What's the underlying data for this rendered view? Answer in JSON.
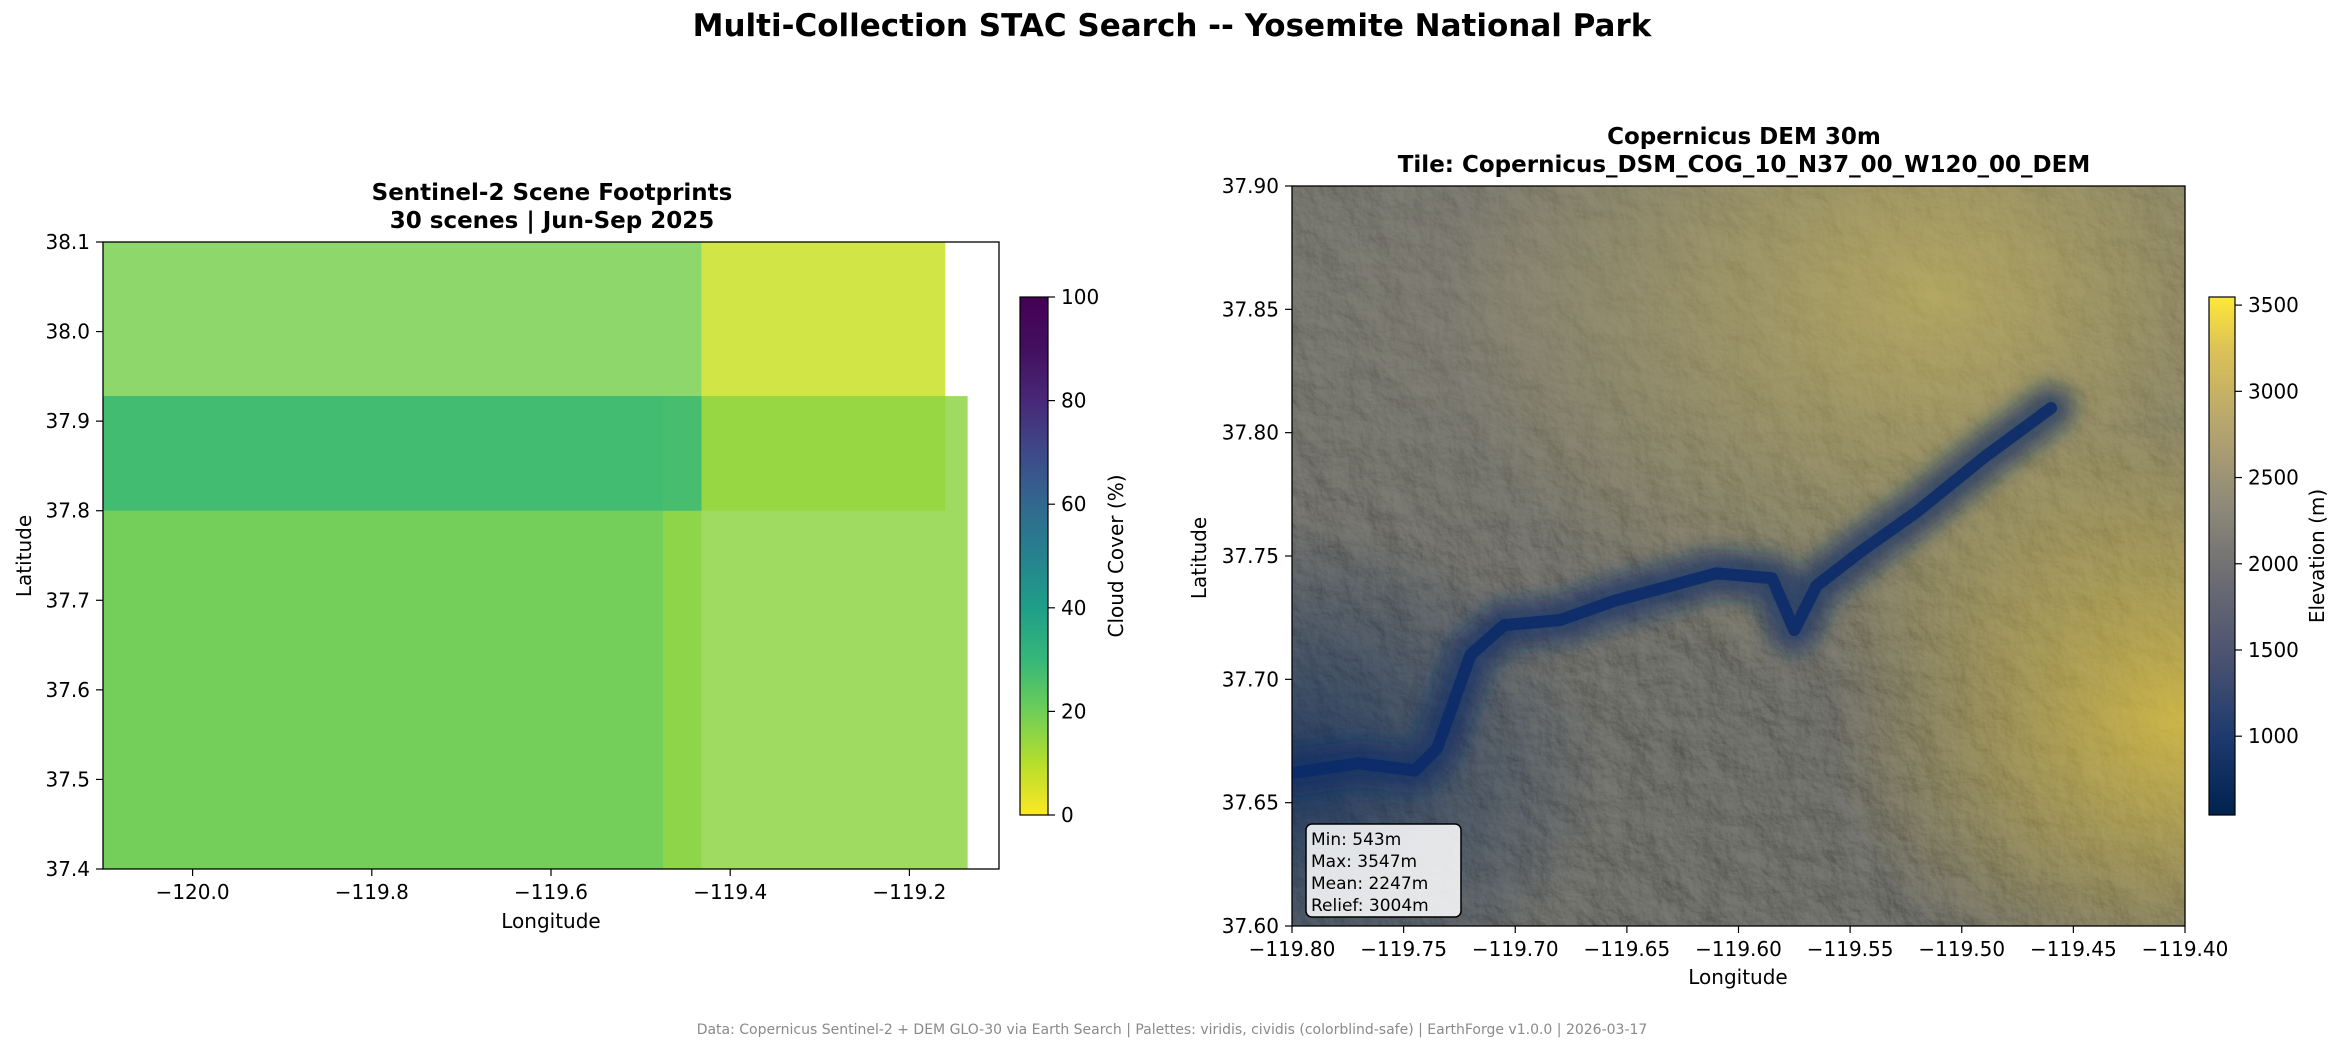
{
  "figure": {
    "title": "Multi-Collection STAC Search -- Yosemite National Park",
    "footer": "Data: Copernicus Sentinel-2 + DEM GLO-30 via Earth Search | Palettes: viridis, cividis (colorblind-safe) | EarthForge v1.0.0 | 2026-03-17"
  },
  "chart_data": [
    {
      "type": "heatmap",
      "title_line1": "Sentinel-2 Scene Footprints",
      "title_line2": "30 scenes | Jun-Sep 2025",
      "xlabel": "Longitude",
      "ylabel": "Latitude",
      "xlim": [
        -120.1,
        -119.1
      ],
      "ylim": [
        37.4,
        38.1
      ],
      "xticks": [
        -120.0,
        -119.8,
        -119.6,
        -119.4,
        -119.2
      ],
      "xtick_labels": [
        "−120.0",
        "−119.8",
        "−119.6",
        "−119.4",
        "−119.2"
      ],
      "yticks": [
        37.4,
        37.5,
        37.6,
        37.7,
        37.8,
        37.9,
        38.0,
        38.1
      ],
      "ytick_labels": [
        "37.4",
        "37.5",
        "37.6",
        "37.7",
        "37.8",
        "37.9",
        "38.0",
        "38.1"
      ],
      "colorbar": {
        "label": "Cloud Cover (%)",
        "colormap": "viridis_r",
        "range": [
          0,
          100
        ],
        "ticks": [
          0,
          20,
          40,
          60,
          80,
          100
        ],
        "tick_labels": [
          "0",
          "20",
          "40",
          "60",
          "80",
          "100"
        ]
      },
      "footprints": [
        {
          "lon_min": -120.1,
          "lon_max": -119.432,
          "lat_min": 37.4,
          "lat_max": 38.1,
          "cloud_cover": 20
        },
        {
          "lon_min": -119.432,
          "lon_max": -119.16,
          "lat_min": 37.8,
          "lat_max": 38.1,
          "cloud_cover": 8
        },
        {
          "lon_min": -120.1,
          "lon_max": -119.475,
          "lat_min": 37.4,
          "lat_max": 37.928,
          "cloud_cover": 22
        },
        {
          "lon_min": -119.475,
          "lon_max": -119.135,
          "lat_min": 37.4,
          "lat_max": 37.928,
          "cloud_cover": 17
        },
        {
          "lon_min": -120.1,
          "lon_max": -119.432,
          "lat_min": 37.8,
          "lat_max": 37.928,
          "cloud_cover": 33
        }
      ]
    },
    {
      "type": "heatmap",
      "title_line1": "Copernicus DEM 30m",
      "title_line2": "Tile: Copernicus_DSM_COG_10_N37_00_W120_00_DEM",
      "xlabel": "Longitude",
      "ylabel": "Latitude",
      "xlim": [
        -119.8,
        -119.4
      ],
      "ylim": [
        37.6,
        37.9
      ],
      "xticks": [
        -119.8,
        -119.75,
        -119.7,
        -119.65,
        -119.6,
        -119.55,
        -119.5,
        -119.45,
        -119.4
      ],
      "xtick_labels": [
        "−119.80",
        "−119.75",
        "−119.70",
        "−119.65",
        "−119.60",
        "−119.55",
        "−119.50",
        "−119.45",
        "−119.40"
      ],
      "yticks": [
        37.6,
        37.65,
        37.7,
        37.75,
        37.8,
        37.85,
        37.9
      ],
      "ytick_labels": [
        "37.60",
        "37.65",
        "37.70",
        "37.75",
        "37.80",
        "37.85",
        "37.90"
      ],
      "colorbar": {
        "label": "Elevation (m)",
        "colormap": "cividis",
        "range": [
          543,
          3547
        ],
        "ticks": [
          1000,
          1500,
          2000,
          2500,
          3000,
          3500
        ],
        "tick_labels": [
          "1000",
          "1500",
          "2000",
          "2500",
          "3000",
          "3500"
        ]
      },
      "valley_path": [
        [
          -119.8,
          37.662
        ],
        [
          -119.77,
          37.666
        ],
        [
          -119.745,
          37.663
        ],
        [
          -119.735,
          37.672
        ],
        [
          -119.72,
          37.71
        ],
        [
          -119.705,
          37.722
        ],
        [
          -119.68,
          37.724
        ],
        [
          -119.655,
          37.732
        ],
        [
          -119.63,
          37.738
        ],
        [
          -119.61,
          37.743
        ],
        [
          -119.585,
          37.741
        ],
        [
          -119.575,
          37.72
        ],
        [
          -119.565,
          37.738
        ],
        [
          -119.545,
          37.752
        ],
        [
          -119.52,
          37.768
        ],
        [
          -119.49,
          37.79
        ],
        [
          -119.46,
          37.81
        ]
      ],
      "stats": {
        "min": "Min: 543m",
        "max": "Max: 3547m",
        "mean": "Mean: 2247m",
        "relief": "Relief: 3004m"
      }
    }
  ]
}
